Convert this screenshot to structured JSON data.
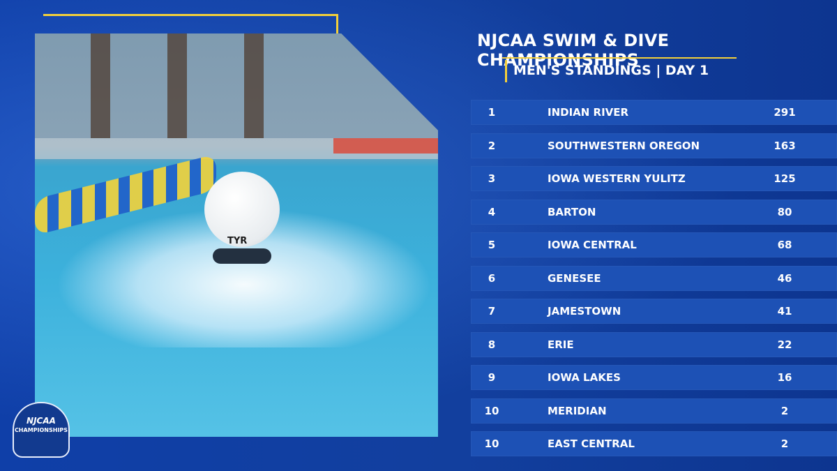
{
  "title": "NJCAA SWIM & DIVE CHAMPIONSHIPS",
  "subtitle": "MEN'S STANDINGS | DAY 1",
  "colors": {
    "accent": "#f4d03a",
    "background": "#123f9e",
    "row": "#1d51b5"
  },
  "photo": {
    "cap_brand": "TYR"
  },
  "logo": {
    "text": "CHAMPIONSHIPS",
    "org": "NJCAA"
  },
  "standings": [
    {
      "rank": "1",
      "team": "INDIAN RIVER",
      "points": "291"
    },
    {
      "rank": "2",
      "team": "SOUTHWESTERN OREGON",
      "points": "163"
    },
    {
      "rank": "3",
      "team": "IOWA WESTERN YULITZ",
      "points": "125"
    },
    {
      "rank": "4",
      "team": "BARTON",
      "points": "80"
    },
    {
      "rank": "5",
      "team": "IOWA CENTRAL",
      "points": "68"
    },
    {
      "rank": "6",
      "team": "GENESEE",
      "points": "46"
    },
    {
      "rank": "7",
      "team": "JAMESTOWN",
      "points": "41"
    },
    {
      "rank": "8",
      "team": "ERIE",
      "points": "22"
    },
    {
      "rank": "9",
      "team": "IOWA LAKES",
      "points": "16"
    },
    {
      "rank": "10",
      "team": "MERIDIAN",
      "points": "2"
    },
    {
      "rank": "10",
      "team": "EAST CENTRAL",
      "points": "2"
    }
  ]
}
